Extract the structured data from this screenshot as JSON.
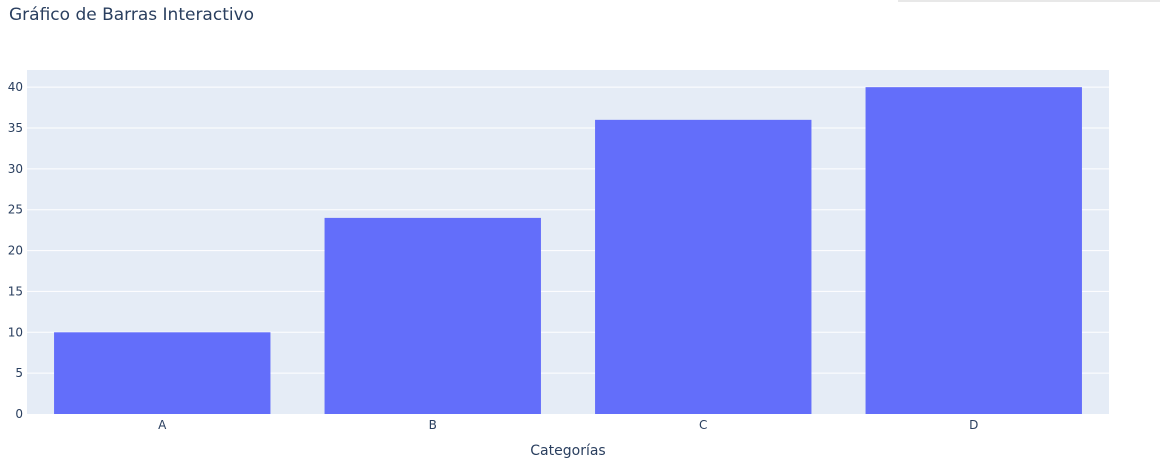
{
  "chart_data": {
    "type": "bar",
    "title": "Gráfico de Barras Interactivo",
    "categories": [
      "A",
      "B",
      "C",
      "D"
    ],
    "values": [
      10,
      24,
      36,
      40
    ],
    "xlabel": "Categorías",
    "ylabel": "",
    "ylim": [
      0,
      42.1
    ],
    "yticks": [
      0,
      5,
      10,
      15,
      20,
      25,
      30,
      35,
      40
    ],
    "grid": true,
    "bar_color": "#636efa",
    "plot_background": "#e5ecf6",
    "grid_color": "#ffffff",
    "text_color": "#2a3f5f"
  }
}
